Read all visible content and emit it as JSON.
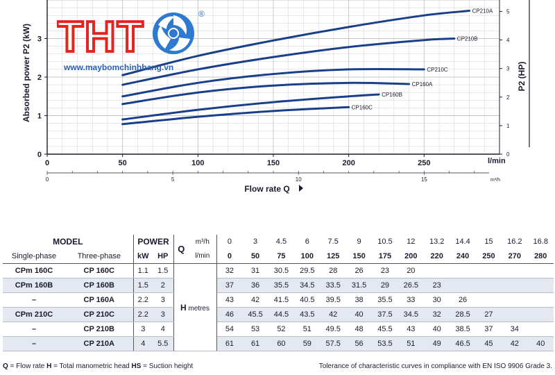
{
  "chart_data": {
    "type": "line",
    "ylabel_left": "Absorbed power P2 (kW)",
    "ylabel_right": "P2 (HP)",
    "xlabel": "Flow rate Q",
    "x_unit_lmin": "l/min",
    "x_unit_m3h": "m³/h",
    "xlim_lmin": [
      0,
      300
    ],
    "ylim_kw": [
      0,
      4
    ],
    "ylim_hp": [
      0,
      5.4
    ],
    "x_ticks_lmin": [
      "0",
      "50",
      "100",
      "150",
      "200",
      "250"
    ],
    "x_ticks_m3h": [
      "0",
      "5",
      "10",
      "15"
    ],
    "y_ticks_kw": [
      "0",
      "1",
      "2",
      "3"
    ],
    "y_ticks_hp": [
      "0",
      "1",
      "2",
      "3",
      "4",
      "5"
    ],
    "series": [
      {
        "name": "CP210A",
        "x": [
          50,
          100,
          150,
          200,
          250,
          280
        ],
        "y": [
          2.05,
          2.55,
          2.95,
          3.3,
          3.6,
          3.72
        ]
      },
      {
        "name": "CP210B",
        "x": [
          50,
          100,
          150,
          200,
          250,
          270
        ],
        "y": [
          1.8,
          2.2,
          2.52,
          2.78,
          2.96,
          3.0
        ]
      },
      {
        "name": "CP210C",
        "x": [
          50,
          100,
          150,
          200,
          250
        ],
        "y": [
          1.5,
          1.85,
          2.08,
          2.2,
          2.2
        ]
      },
      {
        "name": "CP160A",
        "x": [
          50,
          100,
          150,
          200,
          240
        ],
        "y": [
          1.3,
          1.6,
          1.78,
          1.85,
          1.82
        ]
      },
      {
        "name": "CP160B",
        "x": [
          50,
          100,
          150,
          200,
          220
        ],
        "y": [
          0.9,
          1.15,
          1.35,
          1.5,
          1.55
        ]
      },
      {
        "name": "CP160C",
        "x": [
          50,
          100,
          150,
          200
        ],
        "y": [
          0.78,
          0.97,
          1.12,
          1.22
        ]
      }
    ]
  },
  "brand": {
    "logo_text": "THT",
    "registered": "®",
    "url": "www.maybomchinhhang.vn"
  },
  "table": {
    "model_label": "MODEL",
    "power_label": "POWER",
    "q_label": "Q",
    "q_unit_m3h": "m³/h",
    "q_unit_lmin": "l/min",
    "single_phase": "Single-phase",
    "three_phase": "Three-phase",
    "kw": "kW",
    "hp": "HP",
    "h_label": "H",
    "h_unit": "metres",
    "flow_m3h": [
      "0",
      "3",
      "4.5",
      "6",
      "7.5",
      "9",
      "10.5",
      "12",
      "13.2",
      "14.4",
      "15",
      "16.2",
      "16.8"
    ],
    "flow_lmin": [
      "0",
      "50",
      "75",
      "100",
      "125",
      "150",
      "175",
      "200",
      "220",
      "240",
      "250",
      "270",
      "280"
    ],
    "rows": [
      {
        "single": "CPm 160C",
        "three": "CP 160C",
        "kw": "1.1",
        "hp": "1.5",
        "h": [
          "32",
          "31",
          "30.5",
          "29.5",
          "28",
          "26",
          "23",
          "20",
          "",
          "",
          "",
          "",
          ""
        ]
      },
      {
        "single": "CPm 160B",
        "three": "CP 160B",
        "kw": "1.5",
        "hp": "2",
        "h": [
          "37",
          "36",
          "35.5",
          "34.5",
          "33.5",
          "31.5",
          "29",
          "26.5",
          "23",
          "",
          "",
          "",
          ""
        ]
      },
      {
        "single": "–",
        "three": "CP 160A",
        "kw": "2.2",
        "hp": "3",
        "h": [
          "43",
          "42",
          "41.5",
          "40.5",
          "39.5",
          "38",
          "35.5",
          "33",
          "30",
          "26",
          "",
          "",
          ""
        ]
      },
      {
        "single": "CPm 210C",
        "three": "CP 210C",
        "kw": "2.2",
        "hp": "3",
        "h": [
          "46",
          "45.5",
          "44.5",
          "43.5",
          "42",
          "40",
          "37.5",
          "34.5",
          "32",
          "28.5",
          "27",
          "",
          ""
        ]
      },
      {
        "single": "–",
        "three": "CP 210B",
        "kw": "3",
        "hp": "4",
        "h": [
          "54",
          "53",
          "52",
          "51",
          "49.5",
          "48",
          "45.5",
          "43",
          "40",
          "38.5",
          "37",
          "34",
          ""
        ]
      },
      {
        "single": "–",
        "three": "CP 210A",
        "kw": "4",
        "hp": "5.5",
        "h": [
          "61",
          "61",
          "60",
          "59",
          "57.5",
          "56",
          "53.5",
          "51",
          "49",
          "46.5",
          "45",
          "42",
          "40"
        ]
      }
    ]
  },
  "footnote": {
    "legend_q": "Q",
    "legend_q_text": " = Flow rate  ",
    "legend_h": "H",
    "legend_h_text": " = Total manometric head  ",
    "legend_hs": "HS",
    "legend_hs_text": " = Suction height",
    "tolerance": "Tolerance of characteristic curves in compliance with EN ISO 9906 Grade 3."
  },
  "colors": {
    "curve": "#1a3f8a",
    "grid": "#c4c4c4",
    "logo_red": "#e52421",
    "logo_blue": "#2f7ad1",
    "row_shade": "#e4e8f0"
  }
}
